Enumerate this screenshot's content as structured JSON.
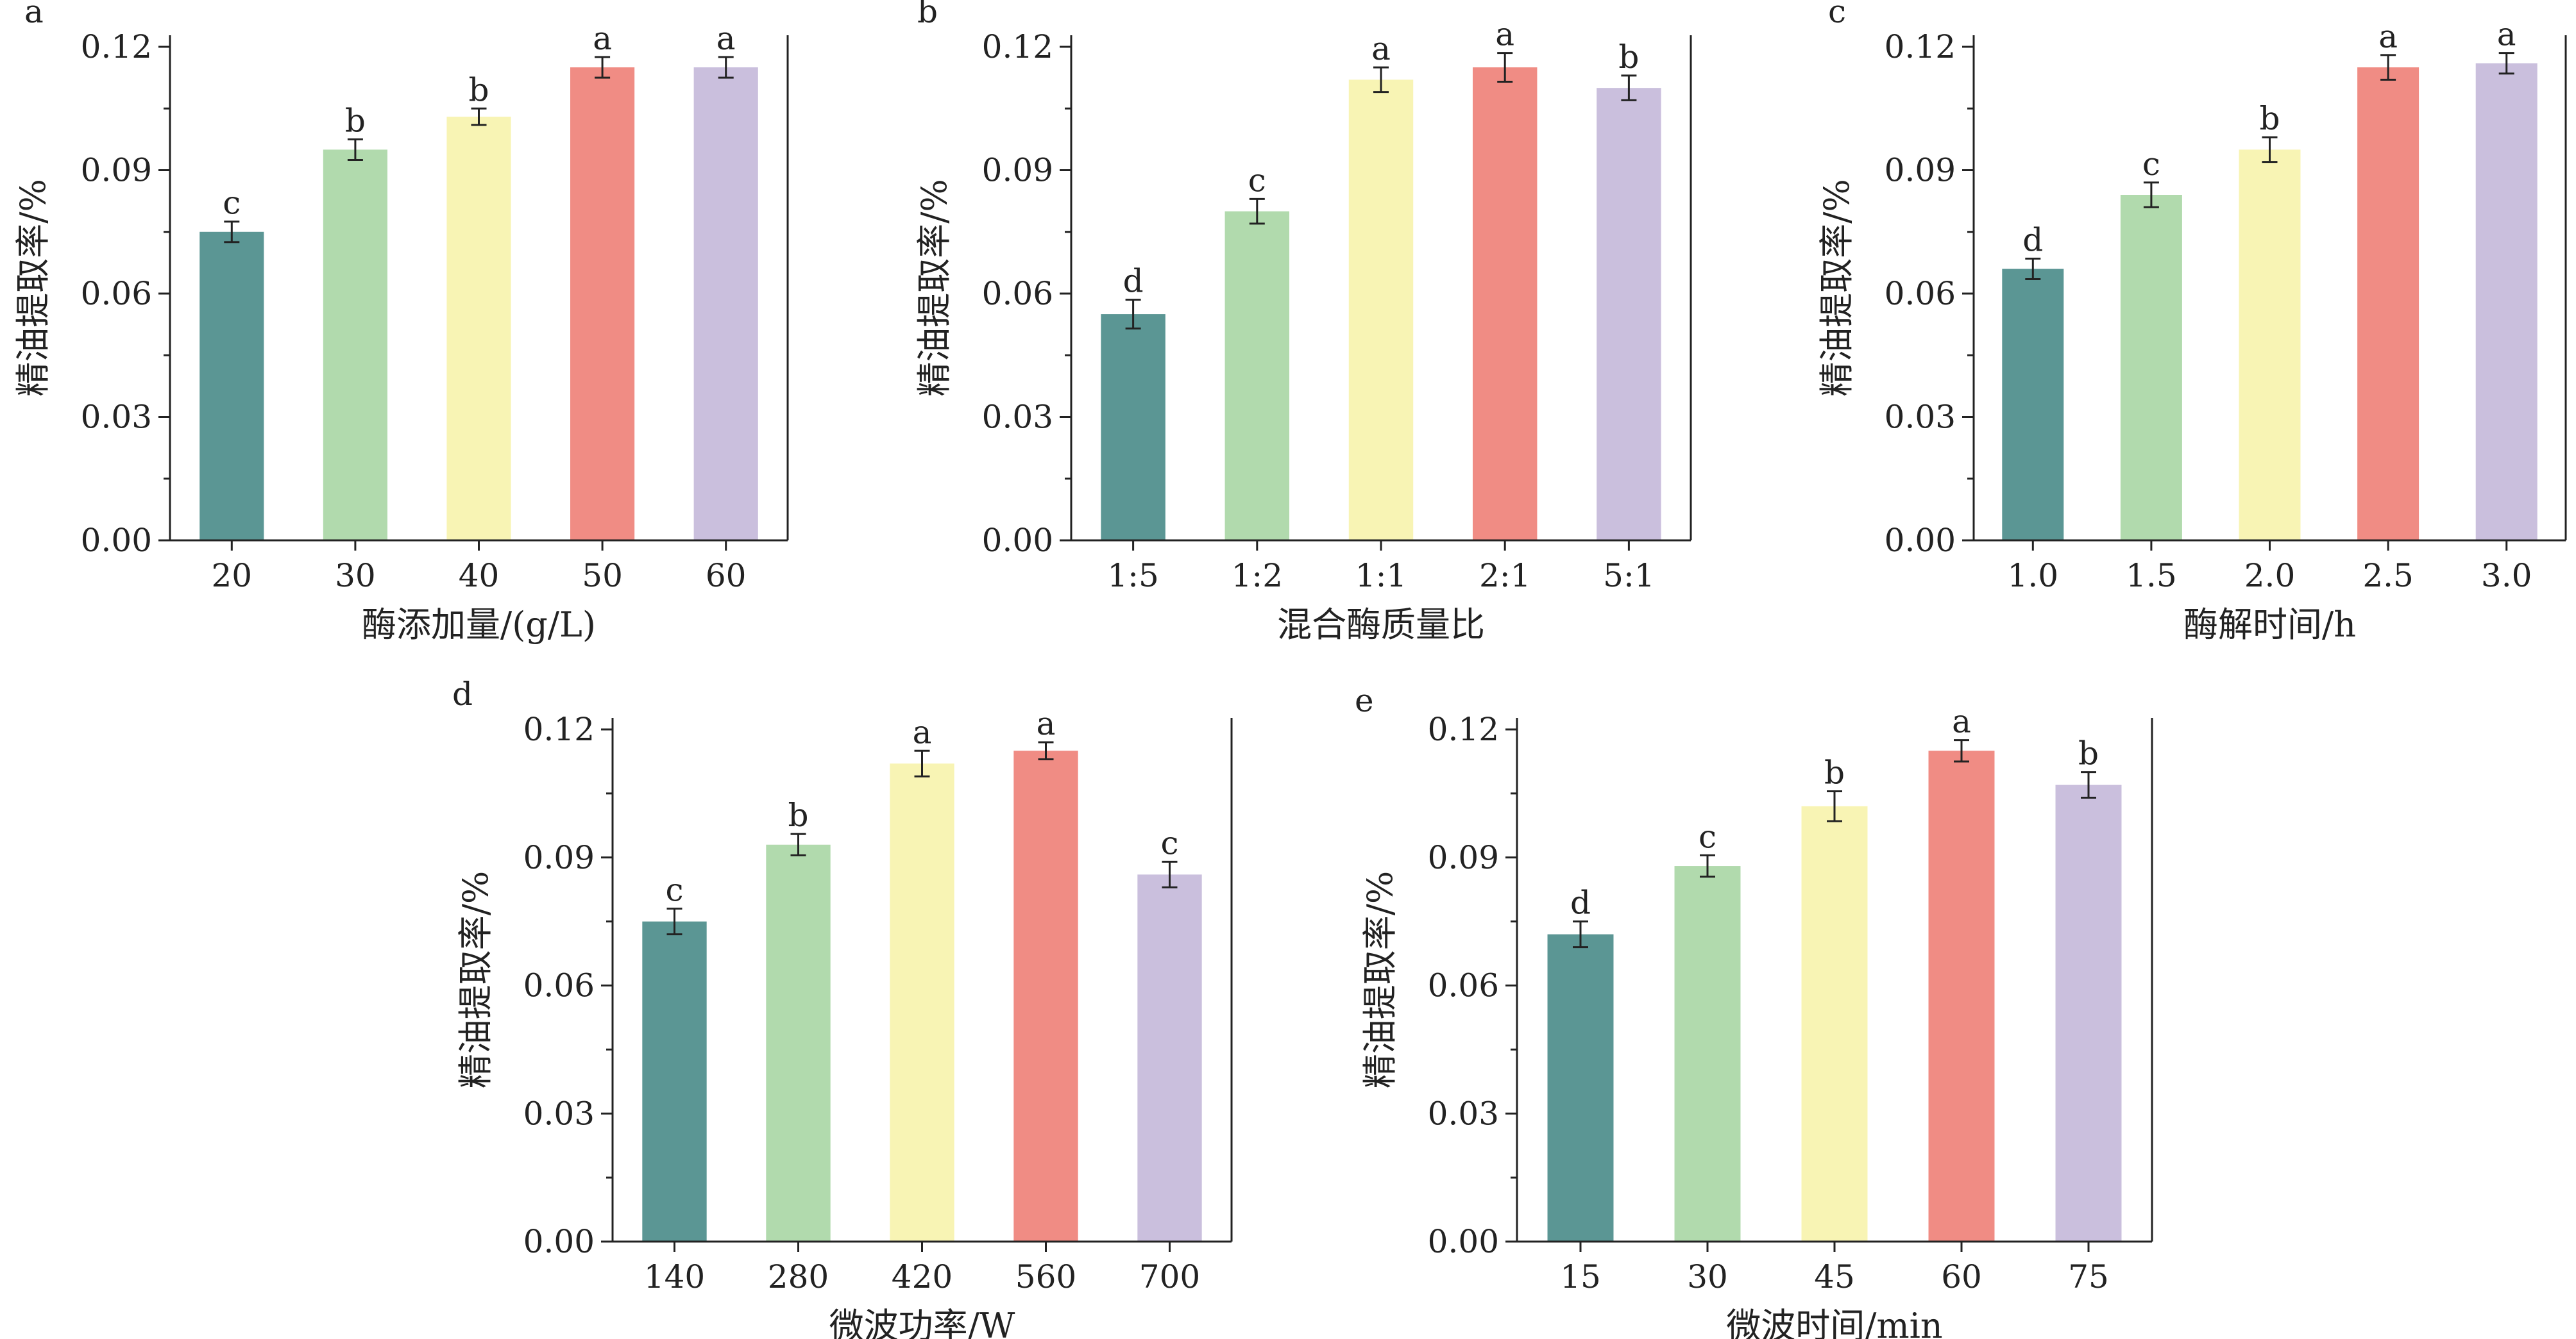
{
  "figure": {
    "ylabel": "精油提取率/%",
    "colors": [
      "#5b9694",
      "#b1daad",
      "#f8f4b4",
      "#f08c84",
      "#cabfdd"
    ],
    "axis_color": "#222222"
  },
  "chart_data": [
    {
      "type": "bar",
      "panel_label": "a",
      "xlabel": "酶添加量/(g/L)",
      "ylabel": "精油提取率/%",
      "categories": [
        "20",
        "30",
        "40",
        "50",
        "60"
      ],
      "values": [
        0.075,
        0.095,
        0.103,
        0.115,
        0.115
      ],
      "errors": [
        0.0025,
        0.0025,
        0.002,
        0.0025,
        0.0025
      ],
      "significance": [
        "c",
        "b",
        "b",
        "a",
        "a"
      ],
      "ylim": [
        0,
        0.12
      ],
      "yticks": [
        "0.00",
        "0.03",
        "0.06",
        "0.09",
        "0.12"
      ],
      "grid": false
    },
    {
      "type": "bar",
      "panel_label": "b",
      "xlabel": "混合酶质量比",
      "ylabel": "精油提取率/%",
      "categories": [
        "1:5",
        "1:2",
        "1:1",
        "2:1",
        "5:1"
      ],
      "values": [
        0.055,
        0.08,
        0.112,
        0.115,
        0.11
      ],
      "errors": [
        0.0035,
        0.003,
        0.003,
        0.0035,
        0.003
      ],
      "significance": [
        "d",
        "c",
        "a",
        "a",
        "b"
      ],
      "ylim": [
        0,
        0.12
      ],
      "yticks": [
        "0.00",
        "0.03",
        "0.06",
        "0.09",
        "0.12"
      ],
      "grid": false
    },
    {
      "type": "bar",
      "panel_label": "c",
      "xlabel": "酶解时间/h",
      "ylabel": "精油提取率/%",
      "categories": [
        "1.0",
        "1.5",
        "2.0",
        "2.5",
        "3.0"
      ],
      "values": [
        0.066,
        0.084,
        0.095,
        0.115,
        0.116
      ],
      "errors": [
        0.0025,
        0.003,
        0.003,
        0.003,
        0.0025
      ],
      "significance": [
        "d",
        "c",
        "b",
        "a",
        "a"
      ],
      "ylim": [
        0,
        0.12
      ],
      "yticks": [
        "0.00",
        "0.03",
        "0.06",
        "0.09",
        "0.12"
      ],
      "grid": false
    },
    {
      "type": "bar",
      "panel_label": "d",
      "xlabel": "微波功率/W",
      "ylabel": "精油提取率/%",
      "categories": [
        "140",
        "280",
        "420",
        "560",
        "700"
      ],
      "values": [
        0.075,
        0.093,
        0.112,
        0.115,
        0.086
      ],
      "errors": [
        0.003,
        0.0025,
        0.003,
        0.002,
        0.003
      ],
      "significance": [
        "c",
        "b",
        "a",
        "a",
        "c"
      ],
      "ylim": [
        0,
        0.12
      ],
      "yticks": [
        "0.00",
        "0.03",
        "0.06",
        "0.09",
        "0.12"
      ],
      "grid": false
    },
    {
      "type": "bar",
      "panel_label": "e",
      "xlabel": "微波时间/min",
      "ylabel": "精油提取率/%",
      "categories": [
        "15",
        "30",
        "45",
        "60",
        "75"
      ],
      "values": [
        0.072,
        0.088,
        0.102,
        0.115,
        0.107
      ],
      "errors": [
        0.003,
        0.0025,
        0.0035,
        0.0025,
        0.003
      ],
      "significance": [
        "d",
        "c",
        "b",
        "a",
        "b"
      ],
      "ylim": [
        0,
        0.12
      ],
      "yticks": [
        "0.00",
        "0.03",
        "0.06",
        "0.09",
        "0.12"
      ],
      "grid": false
    }
  ]
}
